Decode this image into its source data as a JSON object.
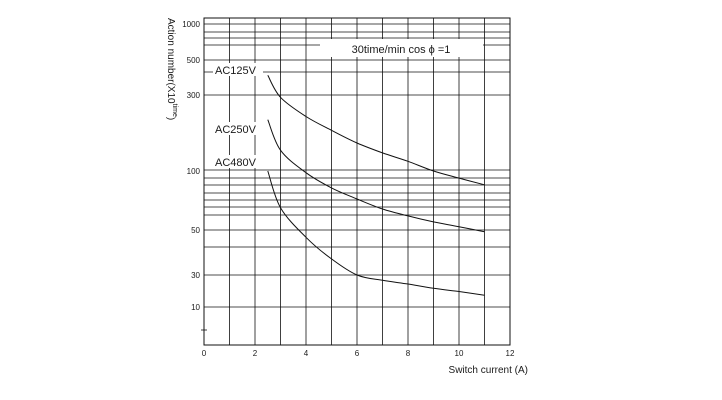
{
  "chart_data": {
    "type": "line",
    "title": "30time/min cos ϕ =1",
    "xlabel": "Switch current (A)",
    "ylabel": "Action number(X10",
    "ylabel_superscript": "time",
    "ylabel_close": ")",
    "xlim": [
      0,
      12
    ],
    "x_ticks": [
      0,
      2,
      4,
      6,
      8,
      10,
      12
    ],
    "y_tick_labels": [
      "1000",
      "500",
      "300",
      "100",
      "50",
      "30",
      "10"
    ],
    "grid": true,
    "series": [
      {
        "name": "AC125V",
        "x": [
          2.5,
          3,
          4,
          5,
          6,
          7,
          8,
          9,
          10,
          11
        ],
        "y": [
          400,
          290,
          220,
          180,
          150,
          130,
          115,
          100,
          92,
          85
        ]
      },
      {
        "name": "AC250V",
        "x": [
          2.5,
          3,
          4,
          5,
          6,
          7,
          8,
          9,
          10,
          11
        ],
        "y": [
          210,
          135,
          98,
          82,
          72,
          64,
          59,
          55,
          52,
          49
        ]
      },
      {
        "name": "AC480V",
        "x": [
          2.5,
          3,
          4,
          5,
          6,
          7,
          8,
          9,
          10,
          11
        ],
        "y": [
          100,
          65,
          46,
          36,
          30,
          25,
          22,
          19,
          17,
          15
        ]
      }
    ]
  }
}
